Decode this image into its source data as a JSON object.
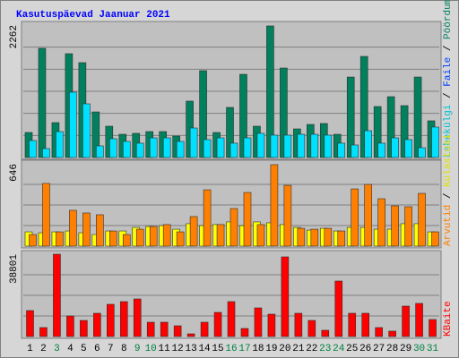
{
  "chart_data": [
    {
      "type": "bar",
      "title": "Kasutuspäevad Jaanuar 2021",
      "ylim": [
        0,
        2262
      ],
      "yticks": [
        2262
      ],
      "legend": [
        {
          "text": "Lehekülgi",
          "color": "#00c0d0"
        },
        {
          "text": "Faile",
          "color": "#0040ff"
        },
        {
          "text": "Pöördumisi",
          "color": "#008060"
        }
      ],
      "legend_separator": " / ",
      "series": [
        {
          "color": "#00805c",
          "values": [
            428,
            1865,
            596,
            1773,
            1620,
            779,
            535,
            397,
            413,
            443,
            443,
            367,
            963,
            1483,
            428,
            856,
            1421,
            535,
            2247,
            1528,
            489,
            565,
            581,
            397,
            1375,
            1727,
            871,
            1039,
            886,
            1375,
            627
          ]
        },
        {
          "color": "#00e0ff",
          "values": [
            290,
            153,
            443,
            1116,
            917,
            199,
            321,
            275,
            245,
            336,
            336,
            275,
            504,
            306,
            336,
            245,
            336,
            413,
            382,
            382,
            397,
            397,
            382,
            245,
            214,
            458,
            245,
            336,
            306,
            168,
            520
          ]
        }
      ]
    },
    {
      "type": "bar",
      "ylim": [
        0,
        646
      ],
      "yticks": [
        646
      ],
      "legend": [
        {
          "text": "Arvutid",
          "color": "#ff8000"
        },
        {
          "text": "Külastusi",
          "color": "#e0e000"
        }
      ],
      "legend_separator": " / ",
      "series": [
        {
          "color": "#ffff00",
          "values": [
            112,
            105,
            112,
            119,
            105,
            91,
            119,
            119,
            147,
            154,
            161,
            133,
            176,
            161,
            169,
            190,
            161,
            190,
            183,
            169,
            147,
            126,
            140,
            119,
            147,
            147,
            133,
            133,
            176,
            176,
            112
          ]
        },
        {
          "color": "#ff8000",
          "values": [
            91,
            492,
            112,
            281,
            260,
            246,
            119,
            91,
            133,
            154,
            169,
            112,
            232,
            442,
            169,
            295,
            421,
            169,
            639,
            477,
            140,
            133,
            140,
            119,
            449,
            484,
            372,
            316,
            309,
            414,
            112
          ]
        }
      ]
    },
    {
      "type": "bar",
      "ylim": [
        0,
        38801
      ],
      "yticks": [
        38801
      ],
      "legend": [
        {
          "text": "KBaite",
          "color": "#ff0000"
        }
      ],
      "series": [
        {
          "color": "#ff0000",
          "values": [
            12231,
            4218,
            38801,
            9700,
            7592,
            10965,
            15183,
            16448,
            17714,
            6748,
            6748,
            5061,
            1265,
            6748,
            11387,
            16448,
            3796,
            13496,
            10544,
            37536,
            10965,
            7592,
            2952,
            26148,
            10965,
            10965,
            4218,
            2530,
            14340,
            15605,
            8013
          ]
        }
      ],
      "categories": [
        "1",
        "2",
        "3",
        "4",
        "5",
        "6",
        "7",
        "8",
        "9",
        "10",
        "11",
        "12",
        "13",
        "14",
        "15",
        "16",
        "17",
        "18",
        "19",
        "20",
        "21",
        "22",
        "23",
        "24",
        "25",
        "26",
        "27",
        "28",
        "29",
        "30",
        "31"
      ],
      "category_colors": [
        "#000000",
        "#000000",
        "#008040",
        "#000000",
        "#000000",
        "#000000",
        "#000000",
        "#000000",
        "#008040",
        "#008040",
        "#000000",
        "#000000",
        "#000000",
        "#000000",
        "#000000",
        "#008040",
        "#008040",
        "#000000",
        "#000000",
        "#000000",
        "#000000",
        "#000000",
        "#008040",
        "#008040",
        "#000000",
        "#000000",
        "#000000",
        "#000000",
        "#000000",
        "#008040",
        "#008040"
      ]
    }
  ]
}
